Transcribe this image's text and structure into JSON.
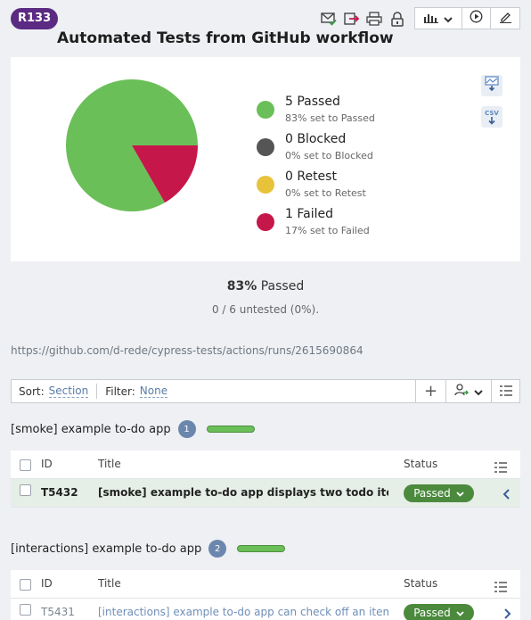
{
  "run": {
    "badge": "R133",
    "title": "Automated Tests from GitHub workflow"
  },
  "toolbar": {
    "icons": [
      "email-check-icon",
      "export-icon",
      "print-icon",
      "lock-icon",
      "bar-chart-icon",
      "play-icon",
      "edit-icon"
    ]
  },
  "colors": {
    "passed": "#6bbf59",
    "blocked": "#555555",
    "retest": "#e8c33a",
    "failed": "#c6174a",
    "badge": "#5b2a82",
    "status_pill": "#4b8a3d"
  },
  "chart_data": {
    "type": "pie",
    "categories": [
      "Passed",
      "Blocked",
      "Retest",
      "Failed"
    ],
    "values": [
      5,
      0,
      0,
      1
    ],
    "colors": [
      "#6bbf59",
      "#555555",
      "#e8c33a",
      "#c6174a"
    ],
    "legend_placement": "right"
  },
  "legend": [
    {
      "label": "5 Passed",
      "sub": "83% set to Passed"
    },
    {
      "label": "0 Blocked",
      "sub": "0% set to Blocked"
    },
    {
      "label": "0 Retest",
      "sub": "0% set to Retest"
    },
    {
      "label": "1 Failed",
      "sub": "17% set to Failed"
    }
  ],
  "chart_tools": {
    "csv_label": "CSV"
  },
  "summary": {
    "pct": "83%",
    "pct_label": "Passed",
    "untested": "0 / 6 untested (0%)."
  },
  "run_link": "https://github.com/d-rede/cypress-tests/actions/runs/2615690864",
  "filterbar": {
    "sort_label": "Sort:",
    "sort_value": "Section",
    "filter_label": "Filter:",
    "filter_value": "None",
    "add_label": "+"
  },
  "columns": {
    "id": "ID",
    "title": "Title",
    "status": "Status"
  },
  "sections": [
    {
      "title": "[smoke] example to-do app",
      "count": "1",
      "rows": [
        {
          "id": "T5432",
          "title": "[smoke] example to-do app displays two todo items by default",
          "status": "Passed"
        }
      ]
    },
    {
      "title": "[interactions] example to-do app",
      "count": "2",
      "rows": [
        {
          "id": "T5431",
          "title": "[interactions] example to-do app can check off an item as completed",
          "status": "Passed"
        }
      ]
    }
  ]
}
